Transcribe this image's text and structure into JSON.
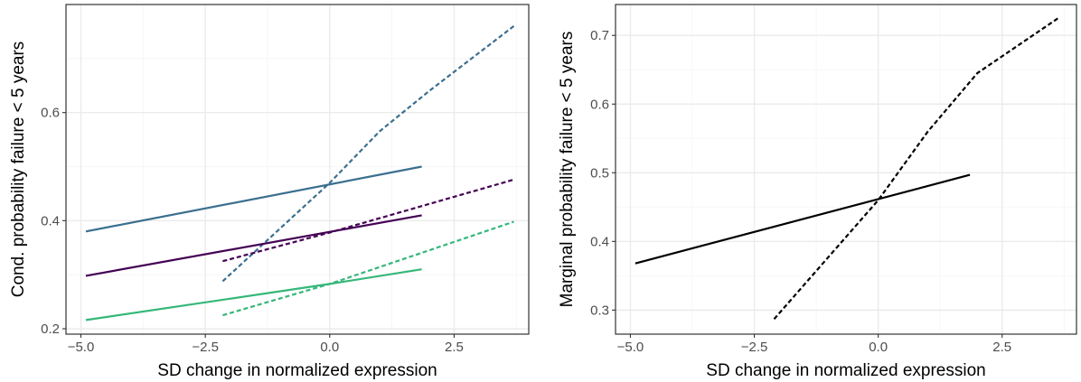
{
  "chart_data": [
    {
      "type": "line",
      "title": "",
      "xlabel": "SD change in normalized expression",
      "ylabel": "Cond. probability failure < 5 years",
      "xlim": [
        -5.3,
        4.0
      ],
      "ylim": [
        0.19,
        0.8
      ],
      "xticks": [
        -5.0,
        -2.5,
        0.0,
        2.5
      ],
      "xtick_labels": [
        "−5.0",
        "−2.5",
        "0.0",
        "2.5"
      ],
      "yticks": [
        0.2,
        0.4,
        0.6
      ],
      "ytick_labels": [
        "0.2",
        "0.4",
        "0.6"
      ],
      "grid": true,
      "legend": "none",
      "series": [
        {
          "color": "#3b6f8f",
          "linestyle": "solid",
          "x": [
            -4.9,
            1.85
          ],
          "y": [
            0.38,
            0.5
          ]
        },
        {
          "color": "#3b6f8f",
          "linestyle": "dashed",
          "x": [
            -2.15,
            0.0,
            1.0,
            2.0,
            3.7
          ],
          "y": [
            0.288,
            0.47,
            0.565,
            0.64,
            0.76
          ]
        },
        {
          "color": "#440154",
          "linestyle": "solid",
          "x": [
            -4.9,
            1.85
          ],
          "y": [
            0.298,
            0.41
          ]
        },
        {
          "color": "#440154",
          "linestyle": "dashed",
          "x": [
            -2.15,
            0.0,
            3.7
          ],
          "y": [
            0.325,
            0.378,
            0.476
          ]
        },
        {
          "color": "#35b779",
          "linestyle": "solid",
          "x": [
            -4.9,
            0.0,
            1.85
          ],
          "y": [
            0.216,
            0.283,
            0.31
          ]
        },
        {
          "color": "#35b779",
          "linestyle": "dashed",
          "x": [
            -2.15,
            0.0,
            3.7
          ],
          "y": [
            0.225,
            0.283,
            0.398
          ]
        }
      ]
    },
    {
      "type": "line",
      "title": "",
      "xlabel": "SD change in normalized expression",
      "ylabel": "Marginal probability failure < 5 years",
      "xlim": [
        -5.3,
        4.0
      ],
      "ylim": [
        0.265,
        0.745
      ],
      "xticks": [
        -5.0,
        -2.5,
        0.0,
        2.5
      ],
      "xtick_labels": [
        "−5.0",
        "−2.5",
        "0.0",
        "2.5"
      ],
      "yticks": [
        0.3,
        0.4,
        0.5,
        0.6,
        0.7
      ],
      "ytick_labels": [
        "0.3",
        "0.4",
        "0.5",
        "0.6",
        "0.7"
      ],
      "grid": true,
      "legend": "none",
      "series": [
        {
          "color": "#000000",
          "linestyle": "solid",
          "x": [
            -4.9,
            1.85
          ],
          "y": [
            0.368,
            0.497
          ]
        },
        {
          "color": "#000000",
          "linestyle": "dashed",
          "x": [
            -2.1,
            0.0,
            1.0,
            2.0,
            3.65
          ],
          "y": [
            0.287,
            0.46,
            0.56,
            0.645,
            0.726
          ]
        }
      ]
    }
  ]
}
